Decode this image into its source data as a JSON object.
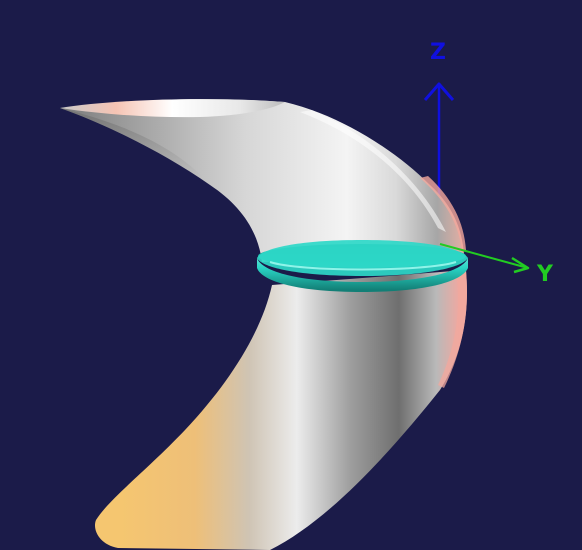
{
  "viewer": {
    "background_color": "#1b1b49"
  },
  "axes": {
    "z": {
      "label": "Z",
      "color": "#1010e0"
    },
    "y": {
      "label": "Y",
      "color": "#22cc22"
    }
  },
  "model": {
    "horn_surface": {
      "highlight_color": "#ffffff",
      "mid_color": "#b8b8b8",
      "shadow_color": "#5e5e5e",
      "warm_color": "#f2c46e",
      "rim_tint": "#f4a89c"
    },
    "ring": {
      "color": "#27d2c2",
      "shadow_color": "#159689"
    }
  }
}
